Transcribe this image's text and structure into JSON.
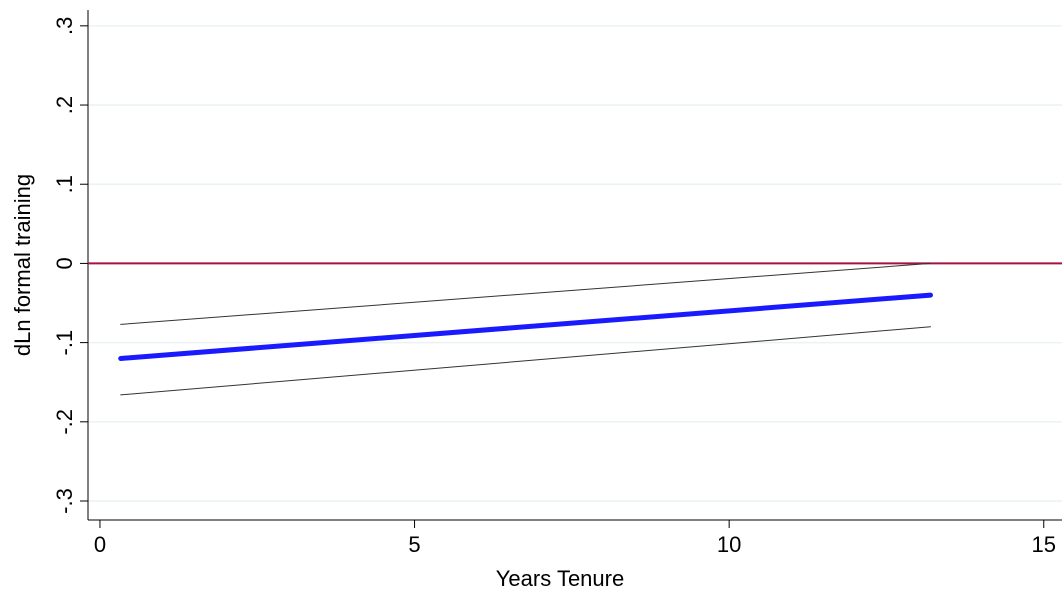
{
  "chart_data": {
    "type": "line",
    "x_label": "Years Tenure",
    "y_label": "dLn formal training",
    "xlim": [
      -0.19,
      15.29
    ],
    "ylim": [
      -0.324,
      0.32
    ],
    "xticks": [
      0,
      5,
      10,
      15
    ],
    "yticks": [
      {
        "value": -0.3,
        "label": "-.3"
      },
      {
        "value": -0.2,
        "label": "-.2"
      },
      {
        "value": -0.1,
        "label": "-.1"
      },
      0,
      {
        "value": 0.1,
        "label": ".1"
      },
      {
        "value": 0.2,
        "label": ".2"
      },
      {
        "value": 0.3,
        "label": ".3"
      }
    ],
    "grid": true,
    "reference_line": {
      "value": 0,
      "color": "#a8123e"
    },
    "series": [
      {
        "color": "#1a1aff",
        "width": 5,
        "x": [
          0.33,
          13.2
        ],
        "values": [
          -0.12,
          -0.04
        ]
      },
      {
        "color": "#333333",
        "width": 1,
        "x": [
          0.33,
          13.2
        ],
        "values": [
          -0.077,
          0.0
        ]
      },
      {
        "color": "#333333",
        "width": 1,
        "x": [
          0.33,
          13.2
        ],
        "values": [
          -0.166,
          -0.08
        ]
      }
    ]
  }
}
